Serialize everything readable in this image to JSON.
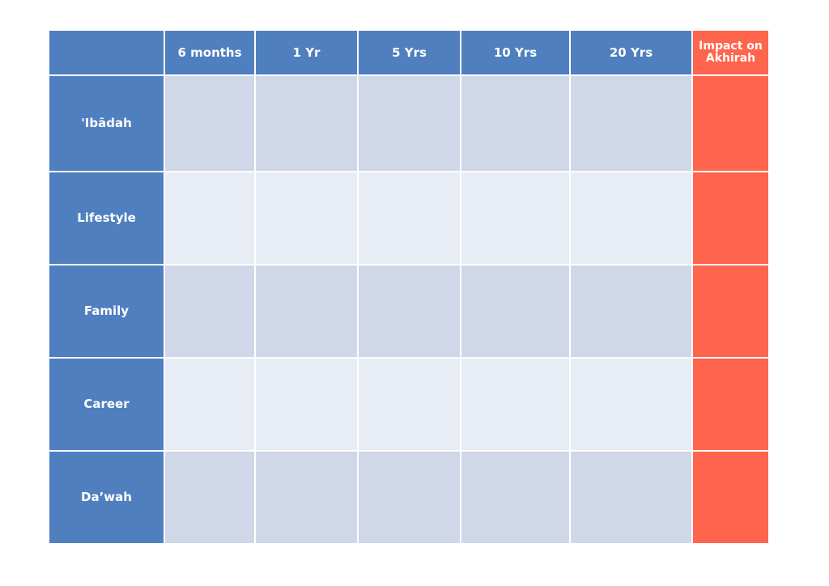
{
  "table": {
    "columns": [
      "6 months",
      "1 Yr",
      "5 Yrs",
      "10 Yrs",
      "20 Yrs"
    ],
    "impact_line1": "Impact on",
    "impact_line2": "Akhirah",
    "rows": [
      "'Ibādah",
      "Lifestyle",
      "Family",
      "Career",
      "Da’wah"
    ]
  },
  "colors": {
    "header_blue": "#4f7fbf",
    "impact_red": "#ff644c",
    "row_dark": "#d0d7e8",
    "row_light": "#e8edf5"
  }
}
